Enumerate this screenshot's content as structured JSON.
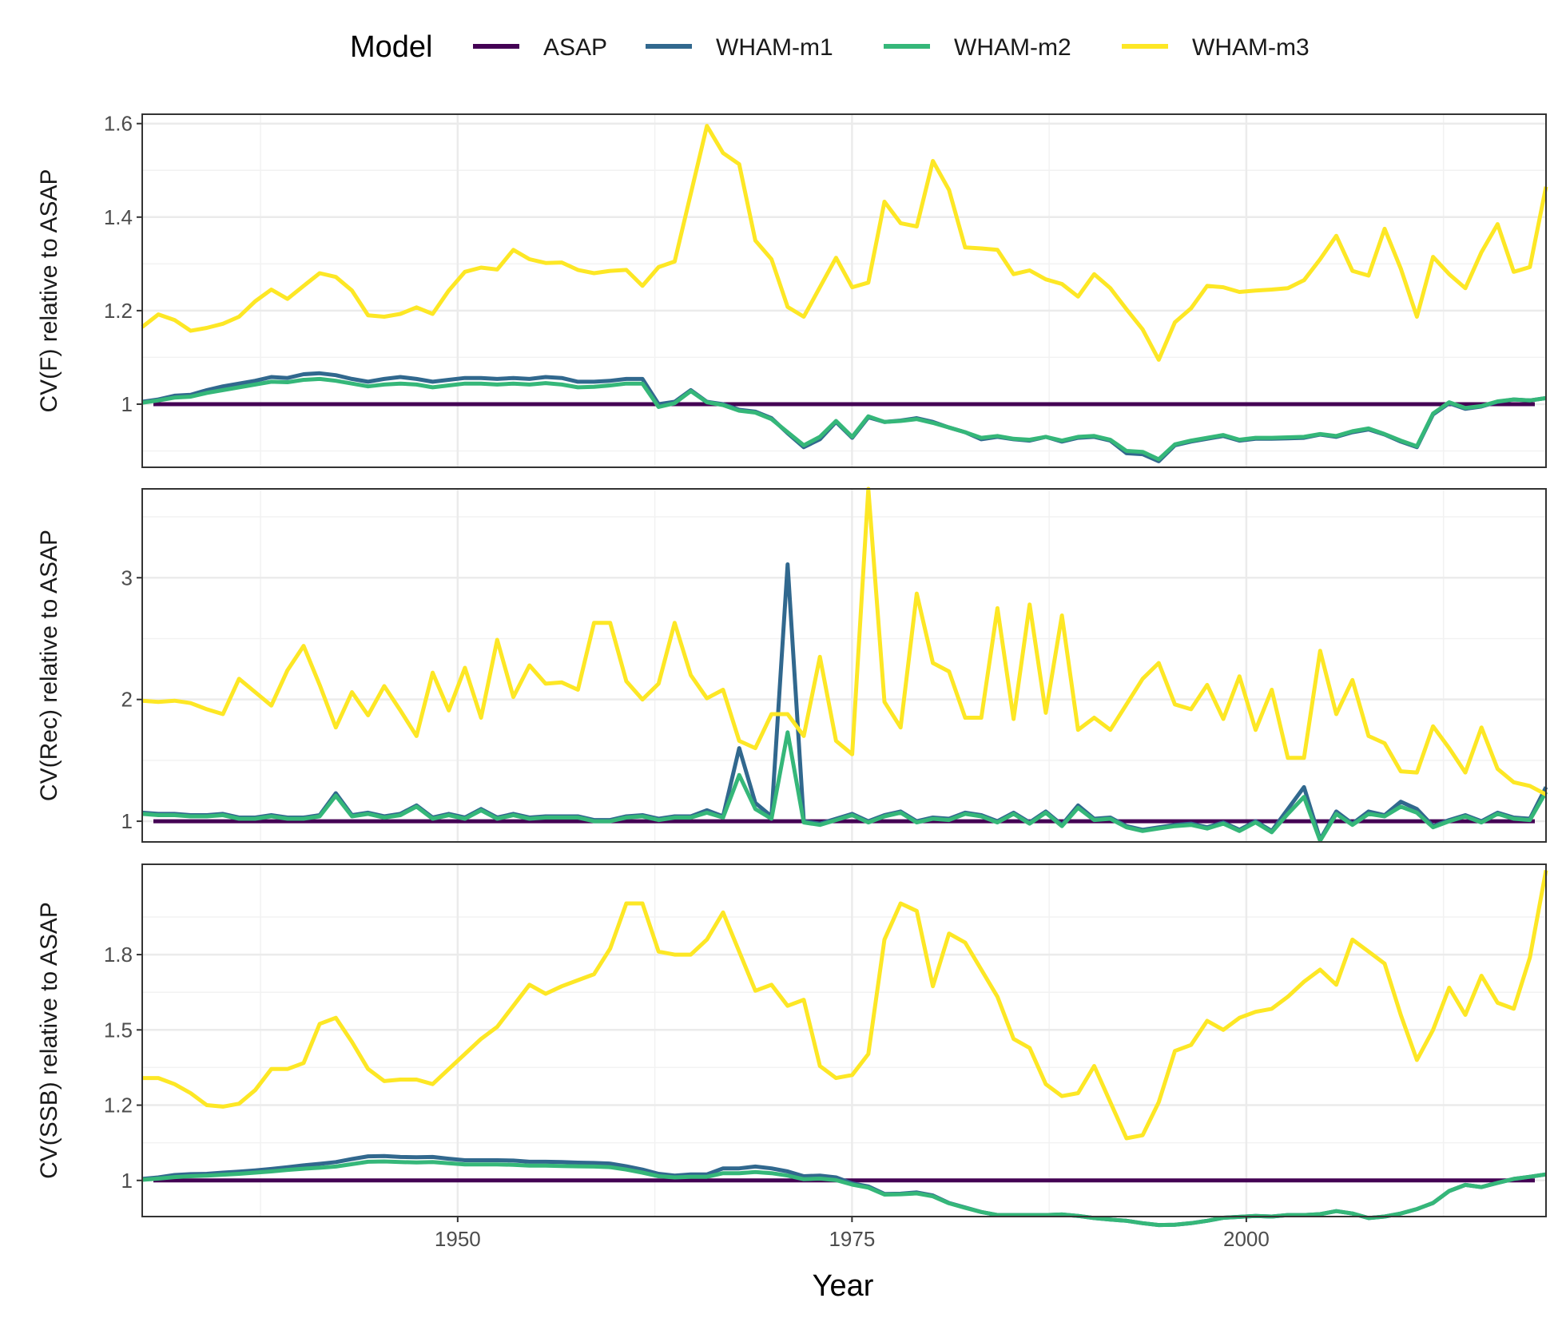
{
  "chart_data": {
    "type": "line",
    "legend": {
      "title": "Model",
      "position": "top",
      "entries": [
        {
          "label": "ASAP",
          "color": "#440154"
        },
        {
          "label": "WHAM-m1",
          "color": "#31688E"
        },
        {
          "label": "WHAM-m2",
          "color": "#35B779"
        },
        {
          "label": "WHAM-m3",
          "color": "#FDE725"
        }
      ]
    },
    "xlabel": "Year",
    "xlim": [
      1930,
      2019
    ],
    "x_ticks": [
      {
        "value": 1950,
        "label": "1950"
      },
      {
        "value": 1975,
        "label": "1975"
      },
      {
        "value": 2000,
        "label": "2000"
      }
    ],
    "grid": true,
    "panels": [
      {
        "ylabel": "CV(F) relative to ASAP",
        "ylim": [
          0.865,
          1.62
        ],
        "y_ticks": [
          {
            "value": 1.0,
            "label": "1"
          },
          {
            "value": 1.2,
            "label": "1.2"
          },
          {
            "value": 1.4,
            "label": "1.4"
          },
          {
            "value": 1.6,
            "label": "1.6"
          }
        ],
        "series": [
          {
            "name": "ASAP",
            "color": "#440154",
            "values": [
              1.0
            ]
          },
          {
            "name": "WHAM-m1",
            "color": "#31688E",
            "values": [
              1.005,
              1.01,
              1.018,
              1.02,
              1.03,
              1.038,
              1.044,
              1.05,
              1.058,
              1.056,
              1.064,
              1.066,
              1.062,
              1.054,
              1.048,
              1.054,
              1.058,
              1.054,
              1.048,
              1.052,
              1.056,
              1.056,
              1.054,
              1.056,
              1.054,
              1.058,
              1.056,
              1.048,
              1.048,
              1.05,
              1.054,
              1.054,
              1.0,
              1.005,
              1.03,
              1.005,
              1.0,
              0.988,
              0.984,
              0.97,
              0.938,
              0.908,
              0.925,
              0.962,
              0.928,
              0.972,
              0.962,
              0.965,
              0.97,
              0.962,
              0.95,
              0.94,
              0.925,
              0.93,
              0.925,
              0.922,
              0.93,
              0.92,
              0.928,
              0.93,
              0.922,
              0.895,
              0.893,
              0.878,
              0.912,
              0.92,
              0.926,
              0.932,
              0.922,
              0.926,
              0.926,
              0.927,
              0.928,
              0.935,
              0.93,
              0.94,
              0.946,
              0.935,
              0.92,
              0.908,
              0.978,
              1.002,
              0.99,
              0.995,
              1.005,
              1.01,
              1.008,
              1.013
            ]
          },
          {
            "name": "WHAM-m2",
            "color": "#35B779",
            "values": [
              1.003,
              1.008,
              1.014,
              1.016,
              1.024,
              1.03,
              1.036,
              1.042,
              1.048,
              1.047,
              1.052,
              1.054,
              1.05,
              1.044,
              1.038,
              1.042,
              1.044,
              1.042,
              1.036,
              1.04,
              1.044,
              1.044,
              1.042,
              1.044,
              1.042,
              1.045,
              1.042,
              1.036,
              1.037,
              1.04,
              1.044,
              1.044,
              0.994,
              1.002,
              1.028,
              1.004,
              0.998,
              0.986,
              0.982,
              0.968,
              0.94,
              0.912,
              0.93,
              0.964,
              0.93,
              0.974,
              0.962,
              0.964,
              0.968,
              0.96,
              0.95,
              0.94,
              0.928,
              0.932,
              0.926,
              0.924,
              0.93,
              0.922,
              0.93,
              0.932,
              0.924,
              0.9,
              0.898,
              0.882,
              0.914,
              0.922,
              0.928,
              0.934,
              0.924,
              0.928,
              0.928,
              0.929,
              0.93,
              0.936,
              0.932,
              0.942,
              0.948,
              0.936,
              0.922,
              0.91,
              0.98,
              1.004,
              0.992,
              0.996,
              1.006,
              1.01,
              1.008,
              1.013
            ]
          },
          {
            "name": "WHAM-m3",
            "color": "#FDE725",
            "values": [
              1.165,
              1.192,
              1.18,
              1.157,
              1.163,
              1.172,
              1.187,
              1.22,
              1.245,
              1.225,
              1.253,
              1.28,
              1.272,
              1.243,
              1.19,
              1.187,
              1.193,
              1.207,
              1.193,
              1.243,
              1.283,
              1.292,
              1.288,
              1.33,
              1.31,
              1.302,
              1.303,
              1.287,
              1.28,
              1.285,
              1.287,
              1.253,
              1.293,
              1.305,
              1.45,
              1.595,
              1.537,
              1.513,
              1.35,
              1.31,
              1.208,
              1.187,
              1.25,
              1.313,
              1.25,
              1.26,
              1.433,
              1.387,
              1.38,
              1.52,
              1.458,
              1.335,
              1.333,
              1.33,
              1.278,
              1.286,
              1.267,
              1.257,
              1.23,
              1.278,
              1.248,
              1.203,
              1.16,
              1.095,
              1.175,
              1.205,
              1.253,
              1.25,
              1.24,
              1.243,
              1.245,
              1.248,
              1.265,
              1.31,
              1.36,
              1.285,
              1.275,
              1.375,
              1.29,
              1.187,
              1.315,
              1.278,
              1.248,
              1.325,
              1.385,
              1.283,
              1.293,
              1.465
            ]
          }
        ]
      },
      {
        "ylabel": "CV(Rec) relative to ASAP",
        "ylim": [
          0.83,
          3.73
        ],
        "y_ticks": [
          {
            "value": 1,
            "label": "1"
          },
          {
            "value": 2,
            "label": "2"
          },
          {
            "value": 3,
            "label": "3"
          }
        ],
        "series": [
          {
            "name": "ASAP",
            "color": "#440154",
            "values": [
              1.0
            ]
          },
          {
            "name": "WHAM-m1",
            "color": "#31688E",
            "values": [
              1.07,
              1.06,
              1.06,
              1.05,
              1.05,
              1.06,
              1.03,
              1.03,
              1.05,
              1.03,
              1.03,
              1.05,
              1.23,
              1.05,
              1.07,
              1.04,
              1.06,
              1.13,
              1.03,
              1.06,
              1.03,
              1.1,
              1.03,
              1.06,
              1.03,
              1.04,
              1.04,
              1.04,
              1.01,
              1.01,
              1.04,
              1.05,
              1.02,
              1.04,
              1.04,
              1.09,
              1.04,
              1.6,
              1.15,
              1.04,
              3.11,
              1.0,
              0.98,
              1.02,
              1.06,
              1.0,
              1.05,
              1.08,
              1.0,
              1.03,
              1.02,
              1.07,
              1.05,
              1.0,
              1.07,
              0.99,
              1.08,
              0.97,
              1.13,
              1.02,
              1.03,
              0.96,
              0.93,
              0.95,
              0.97,
              0.98,
              0.95,
              0.99,
              0.93,
              1.0,
              0.92,
              1.1,
              1.28,
              0.85,
              1.08,
              0.98,
              1.08,
              1.05,
              1.16,
              1.1,
              0.96,
              1.01,
              1.05,
              1.0,
              1.07,
              1.03,
              1.02,
              1.28
            ]
          },
          {
            "name": "WHAM-m2",
            "color": "#35B779",
            "values": [
              1.06,
              1.05,
              1.05,
              1.04,
              1.04,
              1.05,
              1.02,
              1.02,
              1.04,
              1.02,
              1.02,
              1.04,
              1.21,
              1.04,
              1.06,
              1.03,
              1.05,
              1.12,
              1.02,
              1.05,
              1.02,
              1.09,
              1.02,
              1.05,
              1.02,
              1.03,
              1.03,
              1.03,
              1.0,
              1.0,
              1.03,
              1.04,
              1.01,
              1.03,
              1.03,
              1.07,
              1.03,
              1.38,
              1.1,
              1.02,
              1.73,
              0.99,
              0.97,
              1.01,
              1.05,
              0.99,
              1.04,
              1.07,
              0.99,
              1.02,
              1.01,
              1.06,
              1.04,
              0.99,
              1.06,
              0.98,
              1.07,
              0.96,
              1.11,
              1.01,
              1.02,
              0.95,
              0.92,
              0.94,
              0.96,
              0.97,
              0.94,
              0.98,
              0.92,
              0.99,
              0.91,
              1.06,
              1.2,
              0.84,
              1.06,
              0.97,
              1.06,
              1.04,
              1.12,
              1.07,
              0.95,
              1.0,
              1.04,
              0.99,
              1.06,
              1.02,
              1.01,
              1.24
            ]
          },
          {
            "name": "WHAM-m3",
            "color": "#FDE725",
            "values": [
              1.99,
              1.98,
              1.99,
              1.97,
              1.92,
              1.88,
              2.17,
              2.06,
              1.95,
              2.24,
              2.44,
              2.12,
              1.77,
              2.06,
              1.87,
              2.11,
              1.91,
              1.7,
              2.22,
              1.91,
              2.26,
              1.85,
              2.49,
              2.02,
              2.28,
              2.13,
              2.14,
              2.08,
              2.63,
              2.63,
              2.15,
              2.0,
              2.13,
              2.63,
              2.2,
              2.01,
              2.08,
              1.66,
              1.6,
              1.88,
              1.88,
              1.7,
              2.35,
              1.66,
              1.55,
              3.73,
              1.98,
              1.77,
              2.87,
              2.3,
              2.23,
              1.85,
              1.85,
              2.75,
              1.84,
              2.78,
              1.89,
              2.69,
              1.75,
              1.85,
              1.75,
              1.96,
              2.17,
              2.3,
              1.96,
              1.92,
              2.12,
              1.84,
              2.19,
              1.75,
              2.08,
              1.52,
              1.52,
              2.4,
              1.88,
              2.16,
              1.7,
              1.64,
              1.41,
              1.4,
              1.78,
              1.6,
              1.4,
              1.77,
              1.43,
              1.32,
              1.29,
              1.22
            ]
          }
        ]
      },
      {
        "ylabel": "CV(SSB) relative to ASAP",
        "ylim": [
          0.88,
          2.05
        ],
        "y_ticks": [
          {
            "value": 1.0,
            "label": "1"
          },
          {
            "value": 1.25,
            "label": "1.2"
          },
          {
            "value": 1.5,
            "label": "1.5"
          },
          {
            "value": 1.75,
            "label": "1.8"
          }
        ],
        "series": [
          {
            "name": "ASAP",
            "color": "#440154",
            "values": [
              1.0
            ]
          },
          {
            "name": "WHAM-m1",
            "color": "#31688E",
            "values": [
              1.005,
              1.01,
              1.018,
              1.021,
              1.022,
              1.026,
              1.029,
              1.033,
              1.038,
              1.044,
              1.05,
              1.055,
              1.061,
              1.071,
              1.08,
              1.081,
              1.078,
              1.077,
              1.078,
              1.072,
              1.067,
              1.067,
              1.067,
              1.066,
              1.062,
              1.062,
              1.061,
              1.059,
              1.058,
              1.056,
              1.047,
              1.036,
              1.022,
              1.016,
              1.02,
              1.02,
              1.04,
              1.04,
              1.046,
              1.04,
              1.03,
              1.014,
              1.016,
              1.01,
              0.99,
              0.98,
              0.955,
              0.956,
              0.96,
              0.95,
              0.925,
              0.91,
              0.895,
              0.885,
              0.885,
              0.885,
              0.885,
              0.887,
              0.882,
              0.875,
              0.87,
              0.866,
              0.858,
              0.852,
              0.853,
              0.858,
              0.866,
              0.876,
              0.879,
              0.882,
              0.88,
              0.885,
              0.885,
              0.888,
              0.898,
              0.89,
              0.875,
              0.88,
              0.89,
              0.905,
              0.925,
              0.965,
              0.985,
              0.978,
              0.992,
              1.005,
              1.012,
              1.02
            ]
          },
          {
            "name": "WHAM-m2",
            "color": "#35B779",
            "values": [
              1.002,
              1.006,
              1.011,
              1.014,
              1.016,
              1.019,
              1.022,
              1.026,
              1.03,
              1.035,
              1.039,
              1.042,
              1.046,
              1.054,
              1.062,
              1.063,
              1.061,
              1.06,
              1.061,
              1.057,
              1.053,
              1.053,
              1.053,
              1.052,
              1.049,
              1.049,
              1.048,
              1.047,
              1.046,
              1.044,
              1.036,
              1.026,
              1.014,
              1.01,
              1.012,
              1.012,
              1.024,
              1.024,
              1.028,
              1.024,
              1.016,
              1.004,
              1.006,
              1.001,
              0.986,
              0.976,
              0.953,
              0.954,
              0.957,
              0.947,
              0.924,
              0.909,
              0.895,
              0.885,
              0.885,
              0.885,
              0.885,
              0.887,
              0.882,
              0.875,
              0.87,
              0.866,
              0.858,
              0.852,
              0.853,
              0.858,
              0.866,
              0.876,
              0.879,
              0.882,
              0.88,
              0.885,
              0.885,
              0.888,
              0.898,
              0.89,
              0.875,
              0.88,
              0.89,
              0.905,
              0.925,
              0.965,
              0.985,
              0.978,
              0.992,
              1.005,
              1.012,
              1.02
            ]
          },
          {
            "name": "WHAM-m3",
            "color": "#FDE725",
            "values": [
              1.34,
              1.34,
              1.32,
              1.29,
              1.25,
              1.245,
              1.255,
              1.3,
              1.37,
              1.37,
              1.39,
              1.52,
              1.54,
              1.46,
              1.37,
              1.33,
              1.335,
              1.335,
              1.32,
              1.37,
              1.42,
              1.47,
              1.51,
              1.58,
              1.65,
              1.62,
              1.645,
              1.665,
              1.685,
              1.77,
              1.92,
              1.92,
              1.76,
              1.75,
              1.75,
              1.8,
              1.89,
              1.76,
              1.63,
              1.65,
              1.58,
              1.6,
              1.38,
              1.34,
              1.35,
              1.42,
              1.8,
              1.92,
              1.895,
              1.645,
              1.82,
              1.79,
              1.7,
              1.61,
              1.47,
              1.44,
              1.32,
              1.28,
              1.29,
              1.38,
              1.26,
              1.14,
              1.15,
              1.26,
              1.43,
              1.45,
              1.53,
              1.5,
              1.54,
              1.56,
              1.57,
              1.61,
              1.66,
              1.7,
              1.65,
              1.8,
              1.76,
              1.72,
              1.55,
              1.4,
              1.5,
              1.64,
              1.55,
              1.68,
              1.59,
              1.57,
              1.74,
              2.03
            ]
          }
        ]
      }
    ]
  }
}
